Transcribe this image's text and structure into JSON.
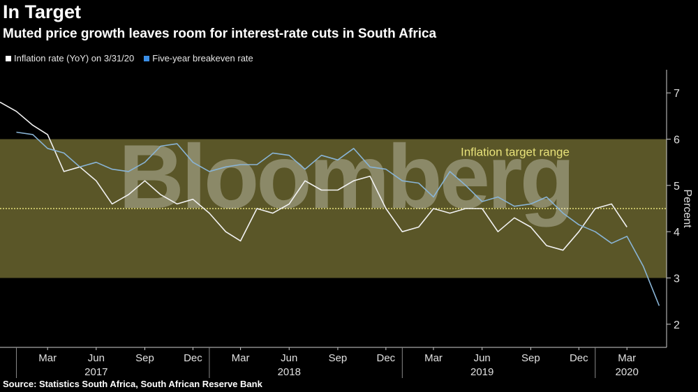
{
  "header": {
    "title": "In Target",
    "subtitle": "Muted price growth leaves room for interest-rate cuts in South Africa"
  },
  "legend": [
    {
      "label": "Inflation rate (YoY) on 3/31/20",
      "color": "#ffffff"
    },
    {
      "label": "Five-year breakeven rate",
      "color": "#3a8ee6"
    }
  ],
  "footer": {
    "source": "Source: Statistics South Africa, South African Reserve Bank"
  },
  "watermark": "Bloomberg",
  "colors": {
    "band": "#5a5628",
    "midline": "#e8e27a",
    "inflation": "#f2f2f2",
    "breakeven": "#89b4d6",
    "annotation": "#e8e27a"
  },
  "chart_data": {
    "type": "line",
    "ylabel": "Percent",
    "ylim": [
      1.5,
      7.5
    ],
    "yticks": [
      2,
      3,
      4,
      5,
      6,
      7
    ],
    "xlim": [
      "2016-12-01",
      "2020-05-15"
    ],
    "xtick_labels": [
      {
        "date": "2017-03-01",
        "label": "Mar"
      },
      {
        "date": "2017-06-01",
        "label": "Jun"
      },
      {
        "date": "2017-09-01",
        "label": "Sep"
      },
      {
        "date": "2017-12-01",
        "label": "Dec"
      },
      {
        "date": "2018-03-01",
        "label": "Mar"
      },
      {
        "date": "2018-06-01",
        "label": "Jun"
      },
      {
        "date": "2018-09-01",
        "label": "Sep"
      },
      {
        "date": "2018-12-01",
        "label": "Dec"
      },
      {
        "date": "2019-03-01",
        "label": "Mar"
      },
      {
        "date": "2019-06-01",
        "label": "Jun"
      },
      {
        "date": "2019-09-01",
        "label": "Sep"
      },
      {
        "date": "2019-12-01",
        "label": "Dec"
      },
      {
        "date": "2020-03-01",
        "label": "Mar"
      }
    ],
    "year_labels": [
      {
        "date": "2017-06-01",
        "label": "2017"
      },
      {
        "date": "2018-06-01",
        "label": "2018"
      },
      {
        "date": "2019-06-01",
        "label": "2019"
      },
      {
        "date": "2020-03-01",
        "label": "2020"
      }
    ],
    "year_separators": [
      "2017-01-01",
      "2018-01-01",
      "2019-01-01",
      "2020-01-01"
    ],
    "target_band": {
      "low": 3,
      "high": 6,
      "mid": 4.5,
      "label": "Inflation target range"
    },
    "series": [
      {
        "name": "Inflation rate (YoY) on 3/31/20",
        "color": "#f2f2f2",
        "x": [
          "2016-12-01",
          "2017-01-01",
          "2017-02-01",
          "2017-03-01",
          "2017-04-01",
          "2017-05-01",
          "2017-06-01",
          "2017-07-01",
          "2017-08-01",
          "2017-09-01",
          "2017-10-01",
          "2017-11-01",
          "2017-12-01",
          "2018-01-01",
          "2018-02-01",
          "2018-03-01",
          "2018-04-01",
          "2018-05-01",
          "2018-06-01",
          "2018-07-01",
          "2018-08-01",
          "2018-09-01",
          "2018-10-01",
          "2018-11-01",
          "2018-12-01",
          "2019-01-01",
          "2019-02-01",
          "2019-03-01",
          "2019-04-01",
          "2019-05-01",
          "2019-06-01",
          "2019-07-01",
          "2019-08-01",
          "2019-09-01",
          "2019-10-01",
          "2019-11-01",
          "2019-12-01",
          "2020-01-01",
          "2020-02-01",
          "2020-03-01"
        ],
        "values": [
          6.8,
          6.6,
          6.3,
          6.1,
          5.3,
          5.4,
          5.1,
          4.6,
          4.8,
          5.1,
          4.8,
          4.6,
          4.7,
          4.4,
          4.0,
          3.8,
          4.5,
          4.4,
          4.6,
          5.1,
          4.9,
          4.9,
          5.1,
          5.2,
          4.5,
          4.0,
          4.1,
          4.5,
          4.4,
          4.5,
          4.5,
          4.0,
          4.3,
          4.1,
          3.7,
          3.6,
          4.0,
          4.5,
          4.6,
          4.1
        ]
      },
      {
        "name": "Five-year breakeven rate",
        "color": "#89b4d6",
        "x": [
          "2017-01-01",
          "2017-02-01",
          "2017-03-01",
          "2017-04-01",
          "2017-05-01",
          "2017-06-01",
          "2017-07-01",
          "2017-08-01",
          "2017-09-01",
          "2017-10-01",
          "2017-11-01",
          "2017-12-01",
          "2018-01-01",
          "2018-02-01",
          "2018-03-01",
          "2018-04-01",
          "2018-05-01",
          "2018-06-01",
          "2018-07-01",
          "2018-08-01",
          "2018-09-01",
          "2018-10-01",
          "2018-11-01",
          "2018-12-01",
          "2019-01-01",
          "2019-02-01",
          "2019-03-01",
          "2019-04-01",
          "2019-05-01",
          "2019-06-01",
          "2019-07-01",
          "2019-08-01",
          "2019-09-01",
          "2019-10-01",
          "2019-11-01",
          "2019-12-01",
          "2020-01-01",
          "2020-02-01",
          "2020-03-01",
          "2020-04-01",
          "2020-05-01"
        ],
        "values": [
          6.15,
          6.1,
          5.8,
          5.7,
          5.4,
          5.5,
          5.35,
          5.3,
          5.5,
          5.85,
          5.9,
          5.5,
          5.3,
          5.4,
          5.45,
          5.45,
          5.7,
          5.65,
          5.35,
          5.65,
          5.55,
          5.8,
          5.4,
          5.35,
          5.1,
          5.05,
          4.75,
          5.3,
          5.0,
          4.65,
          4.75,
          4.55,
          4.6,
          4.75,
          4.4,
          4.15,
          4.0,
          3.75,
          3.9,
          3.25,
          2.4
        ]
      }
    ]
  }
}
